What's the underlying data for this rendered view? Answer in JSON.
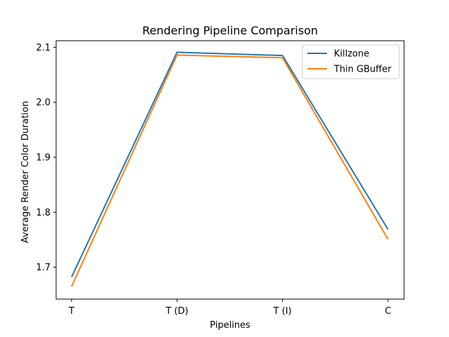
{
  "chart_data": {
    "type": "line",
    "title": "Rendering Pipeline Comparison",
    "xlabel": "Pipelines",
    "ylabel": "Average Render Color Duration",
    "categories": [
      "T",
      "T (D)",
      "T (I)",
      "C"
    ],
    "ylim": [
      1.642,
      2.112
    ],
    "yticks": [
      1.7,
      1.8,
      1.9,
      2.0,
      2.1
    ],
    "ytick_labels": [
      "1.7",
      "1.8",
      "1.9",
      "2.0",
      "2.1"
    ],
    "grid": false,
    "legend_position": "top-right",
    "series": [
      {
        "name": "Killzone",
        "color": "#1f77b4",
        "values": [
          1.682,
          2.091,
          2.085,
          1.769
        ]
      },
      {
        "name": "Thin GBuffer",
        "color": "#ff7f0e",
        "values": [
          1.665,
          2.086,
          2.081,
          1.751
        ]
      }
    ]
  }
}
